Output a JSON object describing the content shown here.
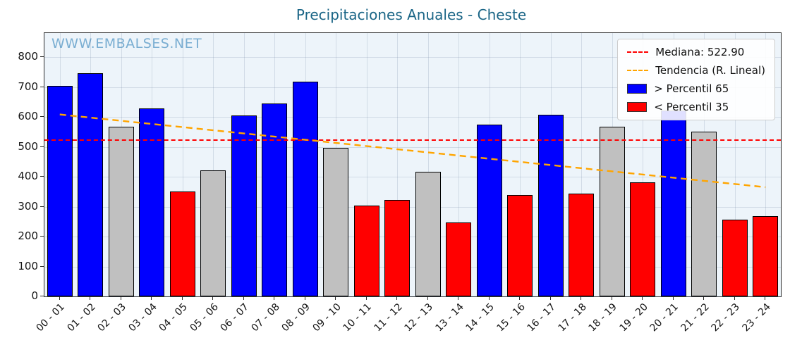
{
  "chart_data": {
    "type": "bar",
    "title": "Precipitaciones Anuales - Cheste",
    "watermark": "WWW.EMBALSES.NET",
    "categories": [
      "00 - 01",
      "01 - 02",
      "02 - 03",
      "03 - 04",
      "04 - 05",
      "05 - 06",
      "06 - 07",
      "07 - 08",
      "08 - 09",
      "09 - 10",
      "10 - 11",
      "11 - 12",
      "12 - 13",
      "13 - 14",
      "14 - 15",
      "15 - 16",
      "16 - 17",
      "17 - 18",
      "18 - 19",
      "19 - 20",
      "20 - 21",
      "21 - 22",
      "22 - 23",
      "23 - 24"
    ],
    "values": [
      703,
      745,
      568,
      628,
      350,
      422,
      605,
      645,
      718,
      497,
      303,
      322,
      417,
      247,
      575,
      338,
      608,
      343,
      567,
      381,
      620,
      550,
      256,
      268
    ],
    "colors": [
      "blue",
      "blue",
      "gray",
      "blue",
      "red",
      "gray",
      "blue",
      "blue",
      "blue",
      "gray",
      "red",
      "red",
      "gray",
      "red",
      "blue",
      "red",
      "blue",
      "red",
      "gray",
      "red",
      "blue",
      "gray",
      "red",
      "red"
    ],
    "palette": {
      "blue": "#0000ff",
      "red": "#ff0000",
      "gray": "#c0c0c0"
    },
    "median_value": 522.9,
    "trend": {
      "start_value": 608,
      "end_value": 365
    },
    "ylim": [
      0,
      880
    ],
    "yticks": [
      0,
      100,
      200,
      300,
      400,
      500,
      600,
      700,
      800
    ],
    "grid": true,
    "legend_position": "upper right",
    "legend": [
      {
        "type": "line",
        "color": "#ff0000",
        "label": "Mediana: 522.90"
      },
      {
        "type": "line",
        "color": "#ffa500",
        "label": "Tendencia (R. Lineal)"
      },
      {
        "type": "patch",
        "color": "#0000ff",
        "label": "> Percentil 65"
      },
      {
        "type": "patch",
        "color": "#ff0000",
        "label": "< Percentil 35"
      }
    ]
  }
}
